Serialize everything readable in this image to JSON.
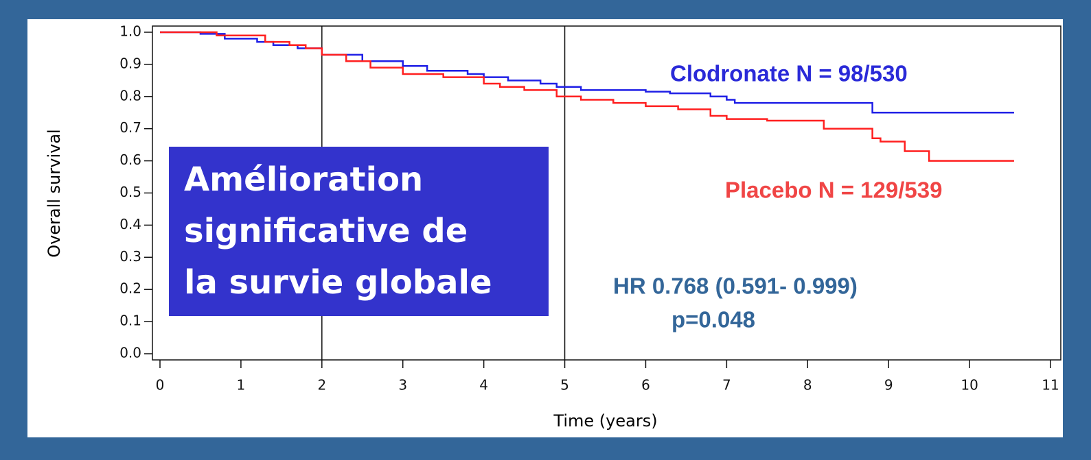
{
  "chart_data": {
    "type": "step",
    "x_label": "Time  (years)",
    "y_label": "Overall survival",
    "xlim": [
      0,
      11
    ],
    "ylim": [
      0,
      1
    ],
    "xticks": [
      0,
      1,
      2,
      3,
      4,
      5,
      6,
      7,
      8,
      9,
      10,
      11
    ],
    "yticks": [
      {
        "value": 0,
        "label": "0.0"
      },
      0.1,
      0.2,
      0.3,
      0.4,
      0.5,
      0.6,
      0.7,
      0.8,
      0.9,
      {
        "value": 1,
        "label": "1.0"
      }
    ],
    "reference_lines": [
      2,
      5
    ],
    "series": [
      {
        "name": "Clodronate N = 98/530",
        "color": "#1f1fe6",
        "x": [
          0,
          0.5,
          0.8,
          1.2,
          1.4,
          1.7,
          2,
          2.5,
          3,
          3.3,
          3.8,
          4,
          4.3,
          4.7,
          4.9,
          5.2,
          6,
          6.3,
          6.8,
          7,
          7.1,
          8.8,
          10.55
        ],
        "values": [
          1.0,
          0.995,
          0.98,
          0.97,
          0.96,
          0.95,
          0.93,
          0.91,
          0.895,
          0.88,
          0.87,
          0.86,
          0.85,
          0.84,
          0.83,
          0.82,
          0.815,
          0.81,
          0.8,
          0.79,
          0.78,
          0.75,
          0.75
        ]
      },
      {
        "name": "Placebo  N = 129/539",
        "color": "#ff1f1f",
        "x": [
          0,
          0.7,
          1.3,
          1.6,
          1.8,
          2,
          2.3,
          2.6,
          3,
          3.5,
          4,
          4.2,
          4.5,
          4.9,
          5.2,
          5.6,
          6,
          6.4,
          6.8,
          7,
          7.5,
          8.2,
          8.8,
          8.9,
          9.2,
          9.5,
          10.55
        ],
        "values": [
          1.0,
          0.99,
          0.97,
          0.96,
          0.95,
          0.93,
          0.91,
          0.89,
          0.87,
          0.86,
          0.84,
          0.83,
          0.82,
          0.8,
          0.79,
          0.78,
          0.77,
          0.76,
          0.74,
          0.73,
          0.725,
          0.7,
          0.67,
          0.66,
          0.63,
          0.6,
          0.6
        ]
      }
    ],
    "box_text": [
      "Amélioration",
      "significative de",
      "la survie globale"
    ],
    "hr_text": [
      "HR 0.768 (0.591- 0.999)",
      "p=0.048"
    ]
  }
}
